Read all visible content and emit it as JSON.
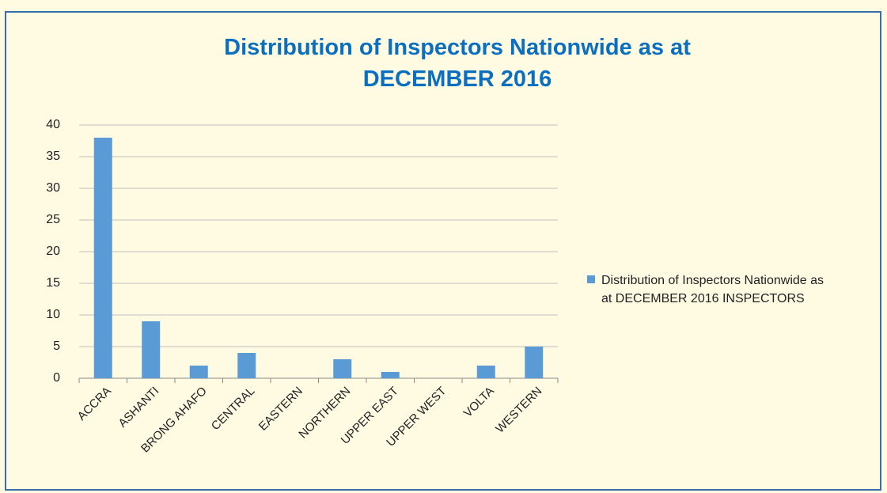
{
  "chart_data": {
    "type": "bar",
    "title": "Distribution of Inspectors Nationwide as at DECEMBER 2016",
    "categories": [
      "ACCRA",
      "ASHANTI",
      "BRONG AHAFO",
      "CENTRAL",
      "EASTERN",
      "NORTHERN",
      "UPPER EAST",
      "UPPER WEST",
      "VOLTA",
      "WESTERN"
    ],
    "series": [
      {
        "name": "Distribution of Inspectors Nationwide as at DECEMBER 2016 INSPECTORS",
        "color": "#5b9bd5",
        "values": [
          38,
          9,
          2,
          4,
          0,
          3,
          1,
          0,
          2,
          5
        ]
      }
    ],
    "ylim": [
      0,
      40
    ],
    "yticks": [
      0,
      5,
      10,
      15,
      20,
      25,
      30,
      35,
      40
    ],
    "grid": true,
    "legend": "right"
  }
}
